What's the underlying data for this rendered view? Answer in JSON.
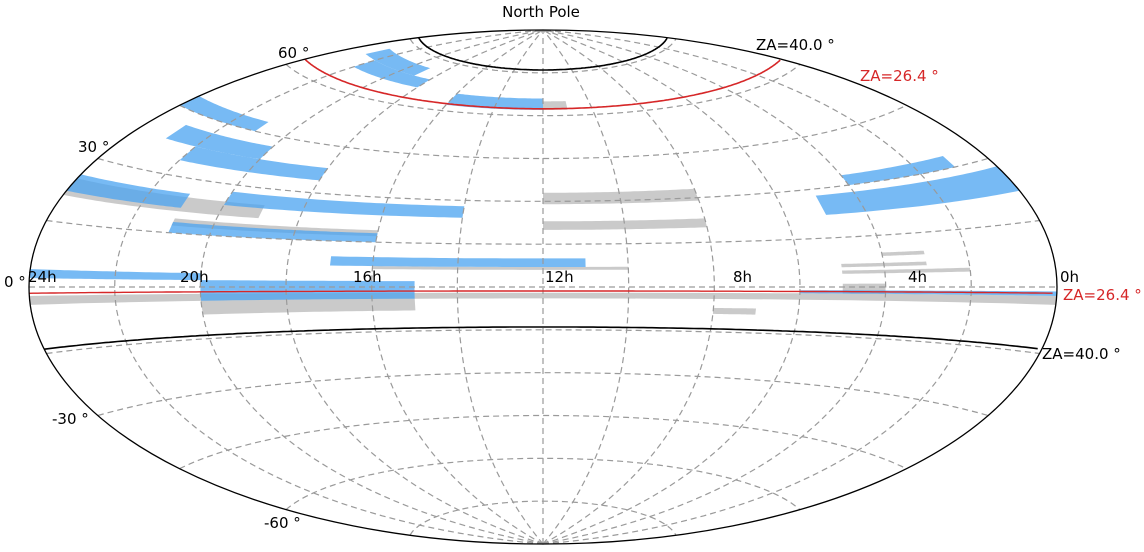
{
  "title": "North Pole",
  "projection": "aitoff",
  "ra_labels": [
    "24h",
    "20h",
    "16h",
    "12h",
    "8h",
    "4h",
    "0h"
  ],
  "dec_labels": {
    "p60": "60$^\\circ$",
    "p30": "30$^\\circ$",
    "zero": "0$^\\circ$",
    "m30": "-30$^\\circ$",
    "m60": "-60$^\\circ$"
  },
  "dec_labels_display": {
    "p60": "60 °",
    "p30": "30 °",
    "zero": "0 °",
    "m30": "-30 °",
    "m60": "-60 °"
  },
  "za_labels": {
    "north_40": "ZA=40.0 °",
    "north_26": "ZA=26.4 °",
    "south_26": "ZA=26.4 °",
    "south_40": "ZA=40.0 °"
  },
  "colors": {
    "za_outer": "#000000",
    "za_inner": "#d62728",
    "blue_coverage": "#4aa3f0",
    "gray_coverage": "#9e9e9e",
    "grid": "#9a9a9a"
  },
  "coverage": {
    "blue": [
      {
        "dec": [
          69,
          72
        ],
        "ra": [
          1,
          5
        ]
      },
      {
        "dec": [
          66,
          69
        ],
        "ra": [
          2,
          6
        ]
      },
      {
        "dec": [
          62,
          66
        ],
        "ra": [
          8,
          12
        ]
      },
      {
        "dec": [
          45,
          48
        ],
        "ra": [
          0,
          3
        ]
      },
      {
        "dec": [
          38,
          42
        ],
        "ra": [
          1,
          4
        ]
      },
      {
        "dec": [
          34,
          38
        ],
        "ra": [
          2,
          6
        ]
      },
      {
        "dec": [
          30,
          33
        ],
        "ra": [
          20,
          23
        ]
      },
      {
        "dec": [
          22,
          28
        ],
        "ra": [
          19,
          24
        ]
      },
      {
        "dec": [
          22,
          26
        ],
        "ra": [
          0,
          3
        ]
      },
      {
        "dec": [
          24,
          28
        ],
        "ra": [
          4,
          10
        ]
      },
      {
        "dec": [
          15,
          18
        ],
        "ra": [
          3,
          8
        ]
      },
      {
        "dec": [
          7,
          10
        ],
        "ra": [
          7,
          13
        ]
      },
      {
        "dec": [
          2,
          4
        ],
        "ra": [
          0,
          4
        ]
      },
      {
        "dec": [
          -1,
          2
        ],
        "ra": [
          4,
          9
        ]
      },
      {
        "dec": [
          -4,
          -1
        ],
        "ra": [
          4,
          9
        ]
      },
      {
        "dec": [
          -2,
          -1
        ],
        "ra": [
          18,
          24
        ]
      }
    ],
    "gray": [
      {
        "dec": [
          62,
          65
        ],
        "ra": [
          12,
          13
        ]
      },
      {
        "dec": [
          29,
          33
        ],
        "ra": [
          12,
          16
        ]
      },
      {
        "dec": [
          20,
          23
        ],
        "ra": [
          12,
          16
        ]
      },
      {
        "dec": [
          21,
          25
        ],
        "ra": [
          0,
          5
        ]
      },
      {
        "dec": [
          17,
          19
        ],
        "ra": [
          3,
          8
        ]
      },
      {
        "dec": [
          6,
          7
        ],
        "ra": [
          8,
          14
        ]
      },
      {
        "dec": [
          -2,
          1
        ],
        "ra": [
          19,
          20
        ]
      },
      {
        "dec": [
          -4,
          -2
        ],
        "ra": [
          0,
          24
        ]
      },
      {
        "dec": [
          -8,
          -4
        ],
        "ra": [
          4,
          9
        ]
      },
      {
        "dec": [
          -9,
          -7
        ],
        "ra": [
          16,
          17
        ]
      },
      {
        "dec": [
          9,
          10
        ],
        "ra": [
          20,
          21
        ]
      },
      {
        "dec": [
          6,
          7
        ],
        "ra": [
          19,
          21
        ]
      },
      {
        "dec": [
          4,
          5
        ],
        "ra": [
          19,
          22
        ]
      }
    ]
  }
}
